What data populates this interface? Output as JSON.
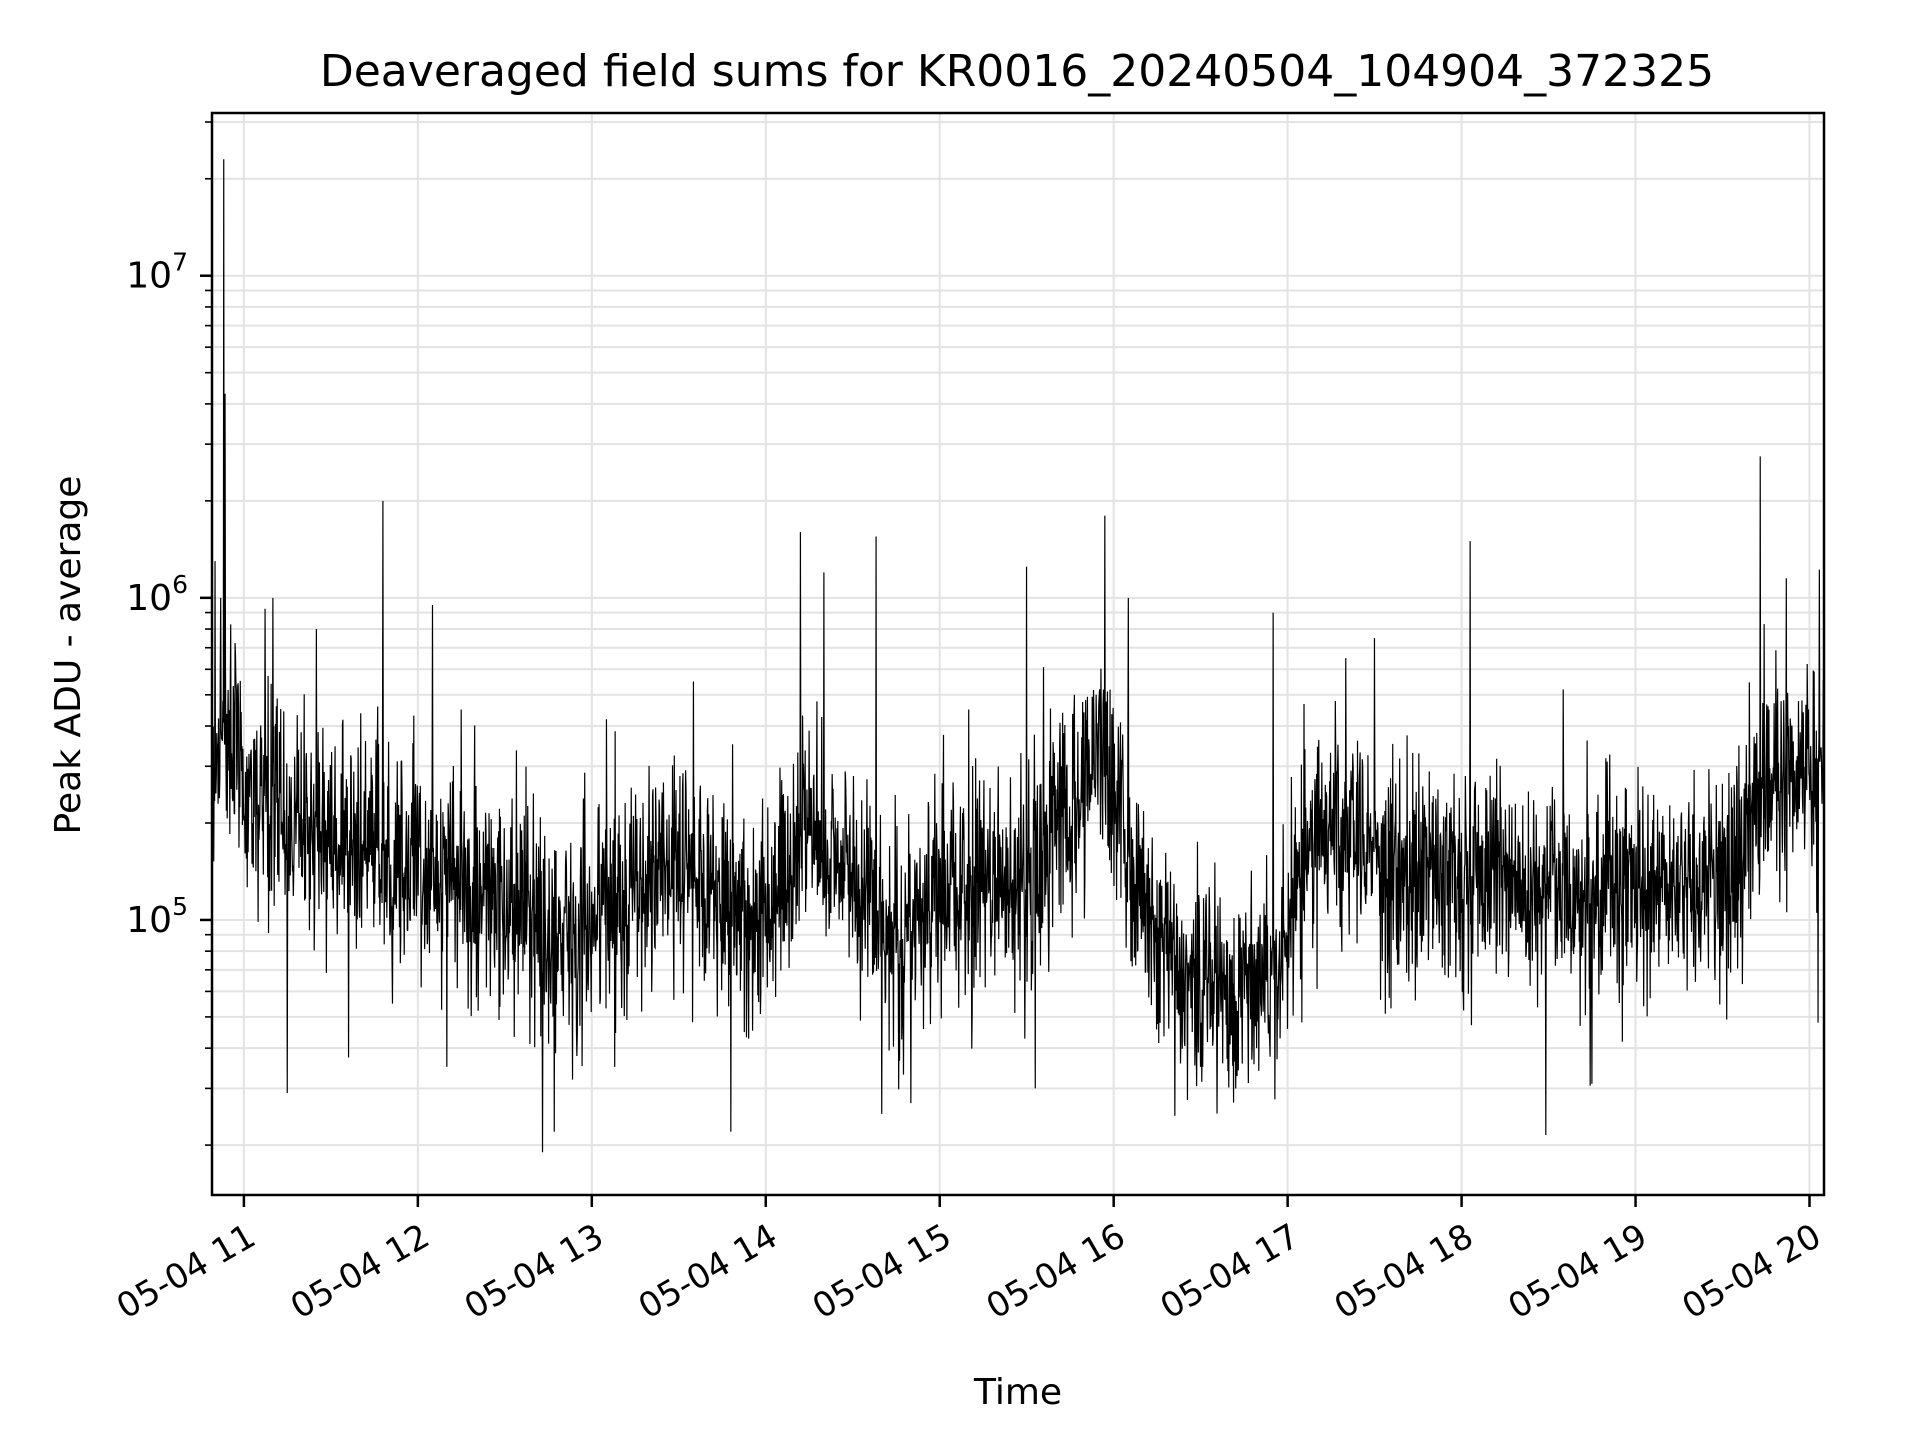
{
  "chart_data": {
    "type": "line",
    "title": "Deaveraged field sums for KR0016_20240504_104904_372325",
    "xlabel": "Time",
    "ylabel": "Peak ADU - average",
    "y_scale": "log",
    "grid": true,
    "grid_minor": true,
    "xlim": [
      "2024-05-04T10:49:00",
      "2024-05-04T20:05:00"
    ],
    "ylim": [
      14000,
      32000000
    ],
    "x_tick_labels": [
      "05-04 11",
      "05-04 12",
      "05-04 13",
      "05-04 14",
      "05-04 15",
      "05-04 16",
      "05-04 17",
      "05-04 18",
      "05-04 19",
      "05-04 20"
    ],
    "y_tick_labels": [
      {
        "base": "10",
        "exp": "5",
        "value": 100000
      },
      {
        "base": "10",
        "exp": "6",
        "value": 1000000
      },
      {
        "base": "10",
        "exp": "7",
        "value": 10000000
      }
    ],
    "line_color": "#000000",
    "grid_color": "#e3e3e3",
    "x_start": "2024-05-04T10:49:00",
    "x_end": "2024-05-04T20:05:00",
    "baseline": [
      {
        "t": "2024-05-04T10:49:00",
        "v": 300000
      },
      {
        "t": "2024-05-04T10:55:00",
        "v": 400000
      },
      {
        "t": "2024-05-04T11:00:00",
        "v": 250000
      },
      {
        "t": "2024-05-04T11:30:00",
        "v": 180000
      },
      {
        "t": "2024-05-04T12:00:00",
        "v": 150000
      },
      {
        "t": "2024-05-04T12:30:00",
        "v": 110000
      },
      {
        "t": "2024-05-04T12:45:00",
        "v": 90000
      },
      {
        "t": "2024-05-04T13:00:00",
        "v": 100000
      },
      {
        "t": "2024-05-04T13:30:00",
        "v": 150000
      },
      {
        "t": "2024-05-04T14:00:00",
        "v": 100000
      },
      {
        "t": "2024-05-04T14:15:00",
        "v": 200000
      },
      {
        "t": "2024-05-04T14:45:00",
        "v": 90000
      },
      {
        "t": "2024-05-04T15:00:00",
        "v": 120000
      },
      {
        "t": "2024-05-04T15:30:00",
        "v": 130000
      },
      {
        "t": "2024-05-04T15:55:00",
        "v": 350000
      },
      {
        "t": "2024-05-04T16:15:00",
        "v": 80000
      },
      {
        "t": "2024-05-04T16:40:00",
        "v": 60000
      },
      {
        "t": "2024-05-04T16:55:00",
        "v": 70000
      },
      {
        "t": "2024-05-04T17:10:00",
        "v": 200000
      },
      {
        "t": "2024-05-04T17:30:00",
        "v": 150000
      },
      {
        "t": "2024-05-04T18:00:00",
        "v": 140000
      },
      {
        "t": "2024-05-04T18:30:00",
        "v": 130000
      },
      {
        "t": "2024-05-04T19:00:00",
        "v": 120000
      },
      {
        "t": "2024-05-04T19:30:00",
        "v": 130000
      },
      {
        "t": "2024-05-04T19:45:00",
        "v": 250000
      },
      {
        "t": "2024-05-04T20:05:00",
        "v": 350000
      }
    ],
    "spikes": [
      {
        "t": "2024-05-04T10:53:00",
        "v": 23000000
      },
      {
        "t": "2024-05-04T10:53:30",
        "v": 4300000
      },
      {
        "t": "2024-05-04T10:50:00",
        "v": 1300000
      },
      {
        "t": "2024-05-04T10:52:00",
        "v": 1000000
      },
      {
        "t": "2024-05-04T11:10:00",
        "v": 1000000
      },
      {
        "t": "2024-05-04T11:25:00",
        "v": 800000
      },
      {
        "t": "2024-05-04T11:48:00",
        "v": 2000000
      },
      {
        "t": "2024-05-04T12:05:00",
        "v": 950000
      },
      {
        "t": "2024-05-04T14:12:00",
        "v": 1600000
      },
      {
        "t": "2024-05-04T14:20:00",
        "v": 1200000
      },
      {
        "t": "2024-05-04T14:38:00",
        "v": 1550000
      },
      {
        "t": "2024-05-04T15:30:00",
        "v": 1250000
      },
      {
        "t": "2024-05-04T15:57:00",
        "v": 1800000
      },
      {
        "t": "2024-05-04T16:05:00",
        "v": 1000000
      },
      {
        "t": "2024-05-04T16:55:00",
        "v": 900000
      },
      {
        "t": "2024-05-04T17:30:00",
        "v": 750000
      },
      {
        "t": "2024-05-04T18:03:00",
        "v": 1500000
      },
      {
        "t": "2024-05-04T19:43:00",
        "v": 2750000
      },
      {
        "t": "2024-05-04T19:52:00",
        "v": 1150000
      },
      {
        "t": "2024-05-04T20:03:00",
        "v": 1050000
      },
      {
        "t": "2024-05-04T12:15:00",
        "v": 450000
      },
      {
        "t": "2024-05-04T13:05:00",
        "v": 420000
      },
      {
        "t": "2024-05-04T13:35:00",
        "v": 550000
      },
      {
        "t": "2024-05-04T15:10:00",
        "v": 450000
      },
      {
        "t": "2024-05-04T17:20:00",
        "v": 650000
      },
      {
        "t": "2024-05-04T18:35:00",
        "v": 520000
      }
    ],
    "dips": [
      {
        "t": "2024-05-04T11:15:00",
        "v": 29000
      },
      {
        "t": "2024-05-04T12:43:00",
        "v": 19000
      },
      {
        "t": "2024-05-04T12:47:00",
        "v": 22000
      },
      {
        "t": "2024-05-04T13:48:00",
        "v": 22000
      },
      {
        "t": "2024-05-04T14:40:00",
        "v": 25000
      },
      {
        "t": "2024-05-04T14:50:00",
        "v": 27000
      },
      {
        "t": "2024-05-04T15:33:00",
        "v": 30000
      },
      {
        "t": "2024-05-04T16:30:00",
        "v": 35000
      },
      {
        "t": "2024-05-04T18:29:00",
        "v": 21500
      },
      {
        "t": "2024-05-04T18:45:00",
        "v": 31000
      },
      {
        "t": "2024-05-04T12:10:00",
        "v": 35000
      },
      {
        "t": "2024-05-04T16:50:00",
        "v": 34000
      },
      {
        "t": "2024-05-04T20:03:00",
        "v": 48000
      }
    ]
  }
}
